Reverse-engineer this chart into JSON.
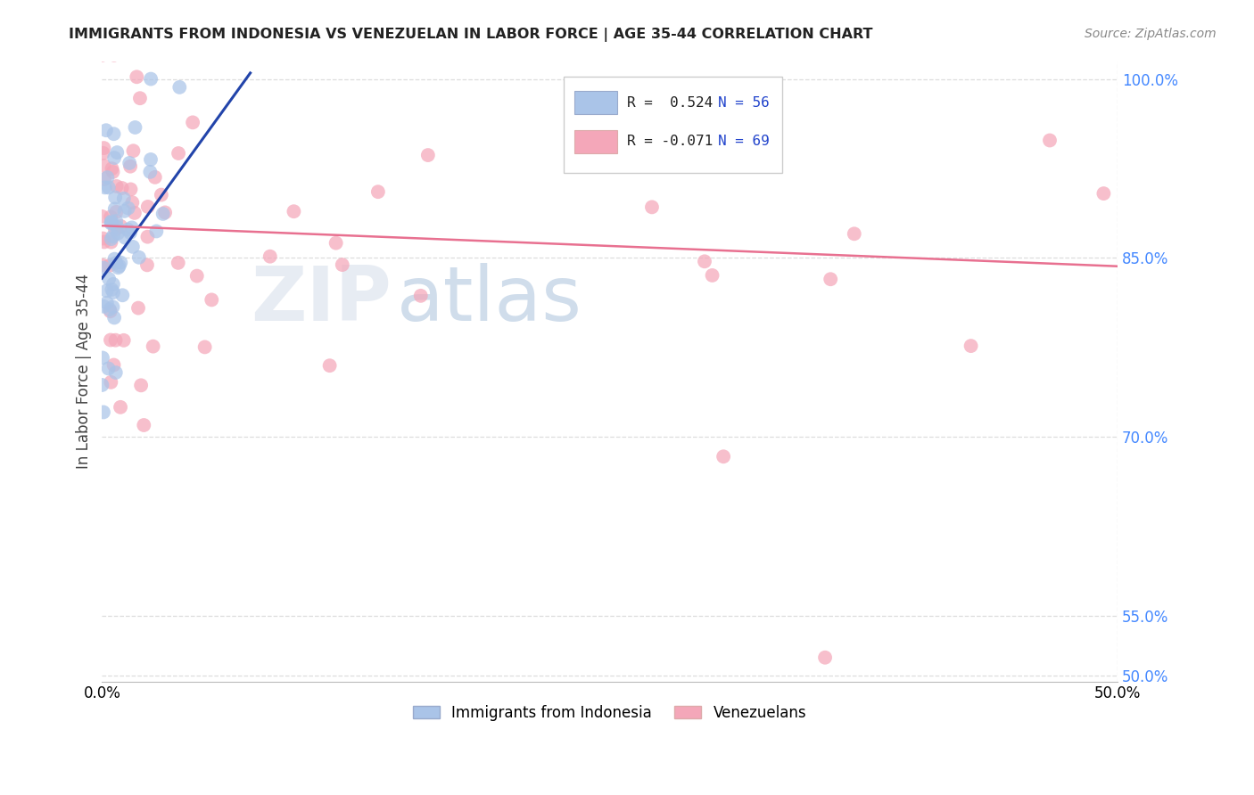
{
  "title": "IMMIGRANTS FROM INDONESIA VS VENEZUELAN IN LABOR FORCE | AGE 35-44 CORRELATION CHART",
  "source": "Source: ZipAtlas.com",
  "ylabel": "In Labor Force | Age 35-44",
  "xmin": 0.0,
  "xmax": 0.5,
  "ymin": 0.495,
  "ymax": 1.015,
  "ytick_vals": [
    0.5,
    0.55,
    0.7,
    0.85,
    1.0
  ],
  "ytick_labels": [
    "50.0%",
    "55.0%",
    "70.0%",
    "85.0%",
    "100.0%"
  ],
  "xtick_vals": [
    0.0,
    0.1,
    0.2,
    0.3,
    0.4,
    0.5
  ],
  "xtick_labels": [
    "0.0%",
    "",
    "",
    "",
    "",
    "50.0%"
  ],
  "grid_color": "#dddddd",
  "indonesia_color": "#aac4e8",
  "venezuela_color": "#f4a7b9",
  "indonesia_line_color": "#2244aa",
  "venezuela_line_color": "#e87090",
  "legend_R_indonesia": "R =  0.524",
  "legend_N_indonesia": "N = 56",
  "legend_R_venezuela": "R = -0.071",
  "legend_N_venezuela": "N = 69",
  "legend_label_indonesia": "Immigrants from Indonesia",
  "legend_label_venezuela": "Venezuelans",
  "indo_line_x": [
    0.0,
    0.073
  ],
  "indo_line_y": [
    0.833,
    1.005
  ],
  "vene_line_x": [
    0.0,
    0.5
  ],
  "vene_line_y": [
    0.877,
    0.843
  ]
}
